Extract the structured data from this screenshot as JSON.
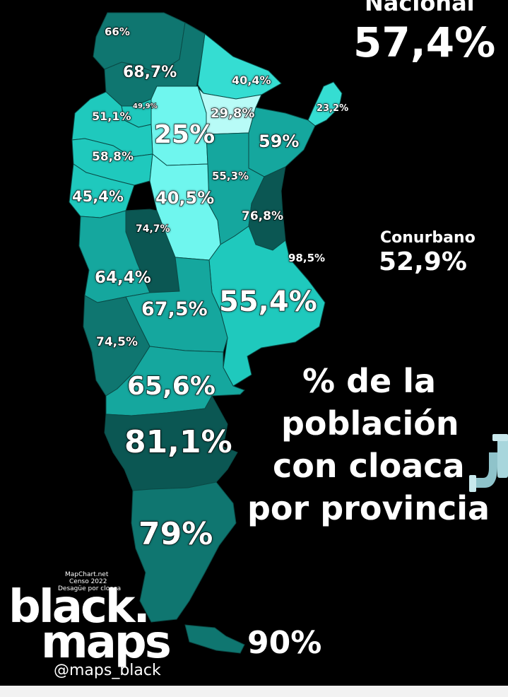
{
  "national": {
    "label": "Nacional",
    "value": "57,4%"
  },
  "conurbano": {
    "label": "Conurbano",
    "value": "52,9%"
  },
  "title_lines": [
    "% de la",
    "población",
    "con cloaca",
    "por provincia"
  ],
  "credits": [
    "MapChart.net",
    "Censo 2022",
    "Desagüe por cloaca"
  ],
  "brand": {
    "line1": "black.",
    "line2": "maps",
    "handle": "@maps_black"
  },
  "provinces": [
    {
      "id": "jujuy",
      "value": "66%"
    },
    {
      "id": "salta",
      "value": "68,7%"
    },
    {
      "id": "formosa",
      "value": "40,4%"
    },
    {
      "id": "catamarca",
      "value": "51,1%"
    },
    {
      "id": "tucuman",
      "value": "49,9%"
    },
    {
      "id": "chaco",
      "value": "29,8%"
    },
    {
      "id": "misiones",
      "value": "23,2%"
    },
    {
      "id": "santiago-del-estero",
      "value": "25%"
    },
    {
      "id": "corrientes",
      "value": "59%"
    },
    {
      "id": "la-rioja",
      "value": "58,8%"
    },
    {
      "id": "santa-fe",
      "value": "55,3%"
    },
    {
      "id": "san-juan",
      "value": "45,4%"
    },
    {
      "id": "cordoba",
      "value": "40,5%"
    },
    {
      "id": "entre-rios",
      "value": "76,8%"
    },
    {
      "id": "san-luis",
      "value": "74,7%"
    },
    {
      "id": "caba",
      "value": "98,5%"
    },
    {
      "id": "mendoza",
      "value": "64,4%"
    },
    {
      "id": "buenos-aires",
      "value": "55,4%"
    },
    {
      "id": "la-pampa",
      "value": "67,5%"
    },
    {
      "id": "neuquen",
      "value": "74,5%"
    },
    {
      "id": "rio-negro",
      "value": "65,6%"
    },
    {
      "id": "chubut",
      "value": "81,1%"
    },
    {
      "id": "santa-cruz",
      "value": "79%"
    },
    {
      "id": "tierra-del-fuego",
      "value": "90%"
    }
  ],
  "colors": {
    "background": "#000000",
    "darkest": "#0b5753",
    "dark": "#0f7670",
    "mid": "#15a79e",
    "light": "#1fc9bd",
    "lighter": "#35ddd2",
    "cyan": "#6ff6ee",
    "palest": "#b8fbf7",
    "pipe": "#a8d6dc"
  }
}
